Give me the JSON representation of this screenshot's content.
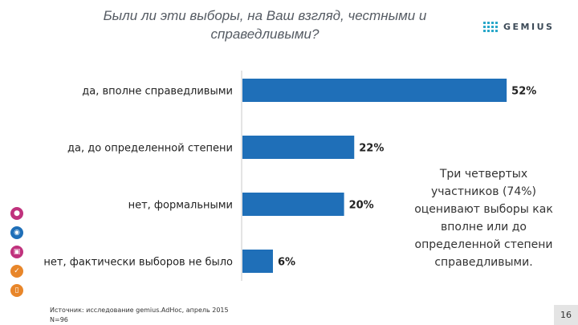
{
  "slide": {
    "title": "Были ли эти выборы, на Ваш взгляд, честными и справедливыми?",
    "logo_text": "GEMIUS",
    "note": "Три четвертых участников (74%) оценивают выборы как вполне или до определенной степени справедливыми.",
    "source_line1": "Источник: исследование gemius.AdHoc, апрель 2015",
    "source_line2": "N=96",
    "page_number": "16",
    "side_icons": [
      {
        "name": "people-icon",
        "color": "#c0327d"
      },
      {
        "name": "bulb-icon",
        "color": "#1f6fb8"
      },
      {
        "name": "cart-icon",
        "color": "#c0327d"
      },
      {
        "name": "wrench-icon",
        "color": "#e8862a"
      },
      {
        "name": "phone-icon",
        "color": "#e8862a"
      }
    ]
  },
  "chart_data": {
    "type": "bar",
    "orientation": "horizontal",
    "categories": [
      "да, вполне справедливыми",
      "да, до определенной степени",
      "нет, формальными",
      "нет, фактически выборов не было"
    ],
    "values": [
      52,
      22,
      20,
      6
    ],
    "value_labels": [
      "52%",
      "22%",
      "20%",
      "6%"
    ],
    "bar_color": "#1f6fb8",
    "xlim": [
      0,
      100
    ],
    "grid": false
  }
}
